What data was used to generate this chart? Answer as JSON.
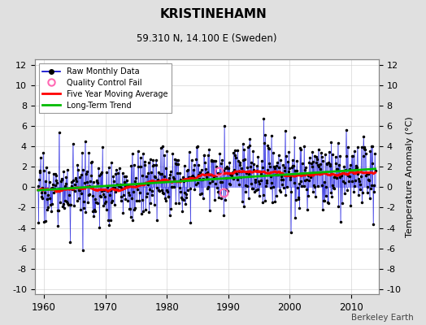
{
  "title": "KRISTINEHAMN",
  "subtitle": "59.310 N, 14.100 E (Sweden)",
  "ylabel_right": "Temperature Anomaly (°C)",
  "watermark": "Berkeley Earth",
  "xlim": [
    1958.5,
    2014.5
  ],
  "ylim": [
    -10.5,
    12.5
  ],
  "yticks": [
    -10,
    -8,
    -6,
    -4,
    -2,
    0,
    2,
    4,
    6,
    8,
    10,
    12
  ],
  "xticks": [
    1960,
    1970,
    1980,
    1990,
    2000,
    2010
  ],
  "bg_color": "#e0e0e0",
  "plot_bg_color": "#ffffff",
  "bar_color": "#8888ff",
  "line_color": "#0000cc",
  "dot_color": "#000000",
  "ma_color": "#ff0000",
  "trend_color": "#00bb00",
  "qc_color": "#ff69b4",
  "seed": 17
}
